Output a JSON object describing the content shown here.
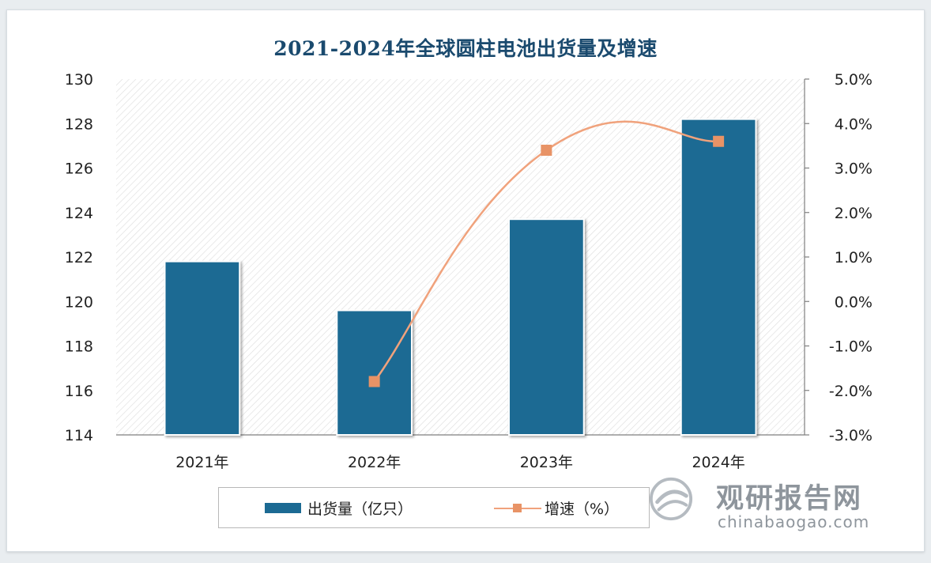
{
  "colors": {
    "bar": "#1c6a93",
    "line": "#f0a27c",
    "marker": "#e89366",
    "title": "#1a4a6e",
    "axis": "#7f7f7f"
  },
  "chart_data": {
    "type": "bar+line",
    "title": "2021-2024年全球圆柱电池出货量及增速",
    "categories": [
      "2021年",
      "2022年",
      "2023年",
      "2024年"
    ],
    "series": [
      {
        "name": "出货量（亿只）",
        "type": "bar",
        "axis": "left",
        "values": [
          121.8,
          119.6,
          123.7,
          128.2
        ]
      },
      {
        "name": "增速（%）",
        "type": "line",
        "axis": "right",
        "values": [
          null,
          -1.8,
          3.4,
          3.6
        ]
      }
    ],
    "y_left": {
      "min": 114,
      "max": 130,
      "step": 2,
      "ticks": [
        "114",
        "116",
        "118",
        "120",
        "122",
        "124",
        "126",
        "128",
        "130"
      ]
    },
    "y_right": {
      "min": -3.0,
      "max": 5.0,
      "step": 1.0,
      "ticks": [
        "-3.0%",
        "-2.0%",
        "-1.0%",
        "0.0%",
        "1.0%",
        "2.0%",
        "3.0%",
        "4.0%",
        "5.0%"
      ]
    },
    "legend_position": "bottom",
    "grid": false
  },
  "legend": {
    "bar_label": "出货量（亿只）",
    "line_label": "增速（%）"
  },
  "watermark": {
    "name": "观研报告网",
    "url": "chinabaogao.com"
  }
}
